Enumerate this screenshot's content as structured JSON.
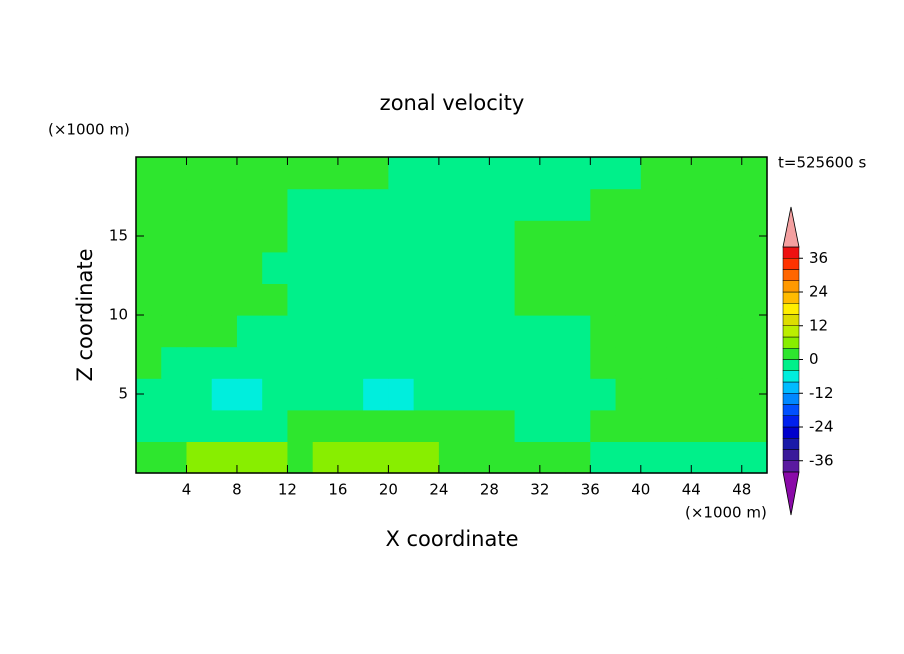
{
  "chart_data": {
    "type": "contour",
    "title": "zonal velocity",
    "xlabel": "X coordinate",
    "ylabel": "Z coordinate",
    "x_unit": "(×1000 m)",
    "y_unit": "(×1000 m)",
    "time_label": "t=525600 s",
    "x": [
      1,
      3,
      5,
      7,
      9,
      11,
      13,
      15,
      17,
      19,
      21,
      23,
      25,
      27,
      29,
      31,
      33,
      35,
      37,
      39,
      41,
      43,
      45,
      47,
      49
    ],
    "z": [
      1,
      3,
      5,
      7,
      9,
      11,
      13,
      15,
      17,
      19
    ],
    "values": [
      [
        2,
        2,
        5,
        5,
        5,
        5,
        2,
        5,
        5,
        5,
        5,
        5,
        2,
        2,
        2,
        2,
        2,
        2,
        -2,
        -2,
        -2,
        -2,
        -2,
        -2,
        -2
      ],
      [
        -2,
        -2,
        -2,
        -2,
        -2,
        -2,
        2,
        2,
        2,
        2,
        2,
        2,
        2,
        2,
        2,
        -2,
        -2,
        -2,
        2,
        2,
        2,
        2,
        2,
        2,
        2
      ],
      [
        -2,
        -2,
        -2,
        -6,
        -6,
        -2,
        -2,
        -2,
        -2,
        -6,
        -6,
        -2,
        -2,
        -2,
        -2,
        -2,
        -2,
        -2,
        -2,
        2,
        2,
        2,
        2,
        2,
        2
      ],
      [
        2,
        -2,
        -2,
        -2,
        -2,
        -2,
        -2,
        -2,
        -2,
        -2,
        -2,
        -2,
        -2,
        -2,
        -2,
        -2,
        -2,
        -2,
        2,
        2,
        2,
        2,
        2,
        2,
        2
      ],
      [
        2,
        2,
        2,
        2,
        -2,
        -2,
        -2,
        -2,
        -2,
        -2,
        -2,
        -2,
        -2,
        -2,
        -2,
        -2,
        -2,
        -2,
        2,
        2,
        2,
        2,
        2,
        2,
        2
      ],
      [
        2,
        2,
        2,
        2,
        2,
        2,
        -2,
        -2,
        -2,
        -2,
        -2,
        -2,
        -2,
        -2,
        -2,
        2,
        2,
        2,
        2,
        2,
        2,
        2,
        2,
        2,
        2
      ],
      [
        2,
        2,
        2,
        2,
        2,
        -2,
        -2,
        -2,
        -2,
        -2,
        -2,
        -2,
        -2,
        -2,
        -2,
        2,
        2,
        2,
        2,
        2,
        2,
        2,
        2,
        2,
        2
      ],
      [
        2,
        2,
        2,
        2,
        2,
        2,
        -2,
        -2,
        -2,
        -2,
        -2,
        -2,
        -2,
        -2,
        -2,
        2,
        2,
        2,
        2,
        2,
        2,
        2,
        2,
        2,
        2
      ],
      [
        2,
        2,
        2,
        2,
        2,
        2,
        -2,
        -2,
        -2,
        -2,
        -2,
        -2,
        -2,
        -2,
        -2,
        -2,
        -2,
        -2,
        2,
        2,
        2,
        2,
        2,
        2,
        2
      ],
      [
        2,
        2,
        2,
        2,
        2,
        2,
        2,
        2,
        2,
        2,
        -2,
        -2,
        -2,
        -2,
        -2,
        -2,
        -2,
        -2,
        -2,
        -2,
        2,
        2,
        2,
        2,
        2
      ]
    ],
    "xlim": [
      0,
      50
    ],
    "xticks": [
      4,
      8,
      12,
      16,
      20,
      24,
      28,
      32,
      36,
      40,
      44,
      48
    ],
    "ylim": [
      0,
      20
    ],
    "yticks": [
      5,
      10,
      15
    ],
    "levels": [
      -40,
      -36,
      -32,
      -28,
      -24,
      -20,
      -16,
      -12,
      -8,
      -4,
      0,
      4,
      8,
      12,
      16,
      20,
      24,
      28,
      32,
      36,
      40
    ],
    "colors": [
      "#5a1aa0",
      "#3a1a9a",
      "#1a1aa8",
      "#0000cc",
      "#0020ee",
      "#0050ff",
      "#0088ff",
      "#00bbff",
      "#00eedd",
      "#00f08a",
      "#2ee62e",
      "#88ee00",
      "#bbee00",
      "#dddd00",
      "#ffee00",
      "#ffbb00",
      "#ff9900",
      "#ff6600",
      "#ff3300",
      "#ee1111"
    ],
    "under_color": "#8a0aa8",
    "over_color": "#f4a0a0",
    "colorbar_ticks": [
      -36,
      -24,
      -12,
      0,
      12,
      24,
      36
    ]
  }
}
